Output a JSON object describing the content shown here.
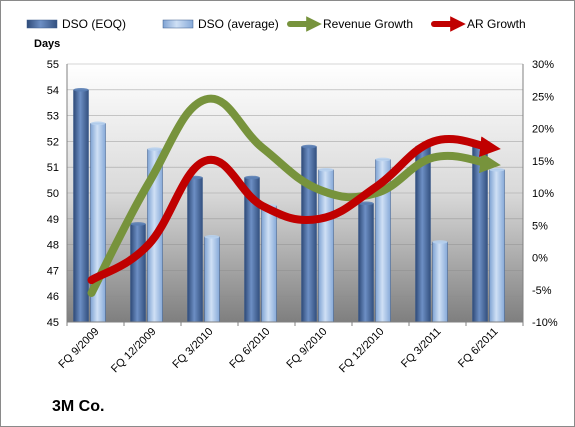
{
  "chart_data": {
    "type": "bar",
    "title": "",
    "categories": [
      "FQ 9/2009",
      "FQ 12/2009",
      "FQ 3/2010",
      "FQ 6/2010",
      "FQ 9/2010",
      "FQ 12/2010",
      "FQ 3/2011",
      "FQ 6/2011"
    ],
    "ylabel": "Days",
    "ylim": [
      45,
      55
    ],
    "y_ticks": [
      "45",
      "46",
      "47",
      "48",
      "49",
      "50",
      "51",
      "52",
      "53",
      "54",
      "55"
    ],
    "y2lim": [
      -10,
      30
    ],
    "y2_ticks": [
      "-10%",
      "-5%",
      "0%",
      "5%",
      "10%",
      "15%",
      "20%",
      "25%",
      "30%"
    ],
    "series": [
      {
        "name": "DSO (EOQ)",
        "kind": "bar",
        "axis": "left",
        "color": "#4a6fa5",
        "values": [
          54.0,
          48.8,
          50.6,
          50.6,
          51.8,
          49.6,
          51.8,
          51.9
        ]
      },
      {
        "name": "DSO (average)",
        "kind": "bar",
        "axis": "left",
        "color": "#a9c6ea",
        "values": [
          52.7,
          51.7,
          48.3,
          49.5,
          50.9,
          51.3,
          48.1,
          50.9
        ]
      },
      {
        "name": "Revenue Growth",
        "kind": "line",
        "axis": "right",
        "color": "#77933c",
        "values": [
          -5.5,
          11.5,
          24.5,
          17.0,
          10.5,
          10.0,
          15.5,
          14.5
        ]
      },
      {
        "name": "AR Growth",
        "kind": "line",
        "axis": "right",
        "color": "#c00000",
        "values": [
          -3.5,
          2.0,
          15.0,
          8.0,
          6.0,
          11.0,
          18.0,
          17.0
        ]
      }
    ],
    "grid": true,
    "legend": "top"
  },
  "footer": {
    "company": "3M Co."
  }
}
